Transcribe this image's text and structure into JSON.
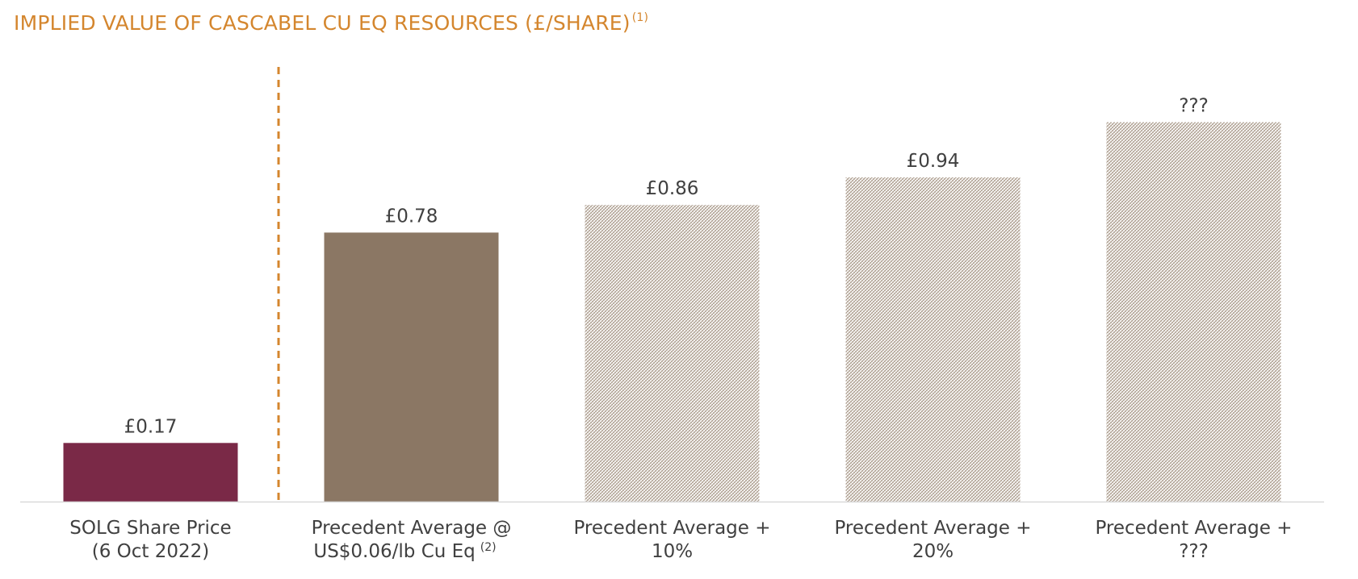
{
  "page": {
    "title": "IMPLIED VALUE OF CASCABEL CU EQ RESOURCES (£/SHARE)",
    "title_footnote": "(1)"
  },
  "colors": {
    "title": "#D4862E",
    "solg_bar": "#7A2947",
    "precedent_bar": "#8B7764",
    "hatched_bar": "#C9BDB2",
    "divider": "#D4862E",
    "label_text": "#404040",
    "axis": "#D9D9D9"
  },
  "chart_data": {
    "type": "bar",
    "categories": [
      "SOLG Share Price (6 Oct 2022)",
      "Precedent Average @ US$0.06/lb Cu Eq (2)",
      "Precedent Average + 10%",
      "Precedent Average + 20%",
      "Precedent Average + ???"
    ],
    "category_lines": [
      [
        "SOLG Share Price",
        "(6 Oct 2022)"
      ],
      [
        "Precedent Average @",
        "US$0.06/lb Cu Eq",
        "(2)"
      ],
      [
        "Precedent Average +",
        "10%"
      ],
      [
        "Precedent Average +",
        "20%"
      ],
      [
        "Precedent Average +",
        "???"
      ]
    ],
    "values": [
      0.17,
      0.78,
      0.86,
      0.94,
      1.1
    ],
    "data_labels": [
      "£0.17",
      "£0.78",
      "£0.86",
      "£0.94",
      "???"
    ],
    "styles": [
      "solid-maroon",
      "solid-brown",
      "hatched",
      "hatched",
      "hatched"
    ],
    "divider_after_index": 0,
    "ylim": [
      0,
      1.2
    ],
    "grid": false,
    "legend": "none"
  }
}
